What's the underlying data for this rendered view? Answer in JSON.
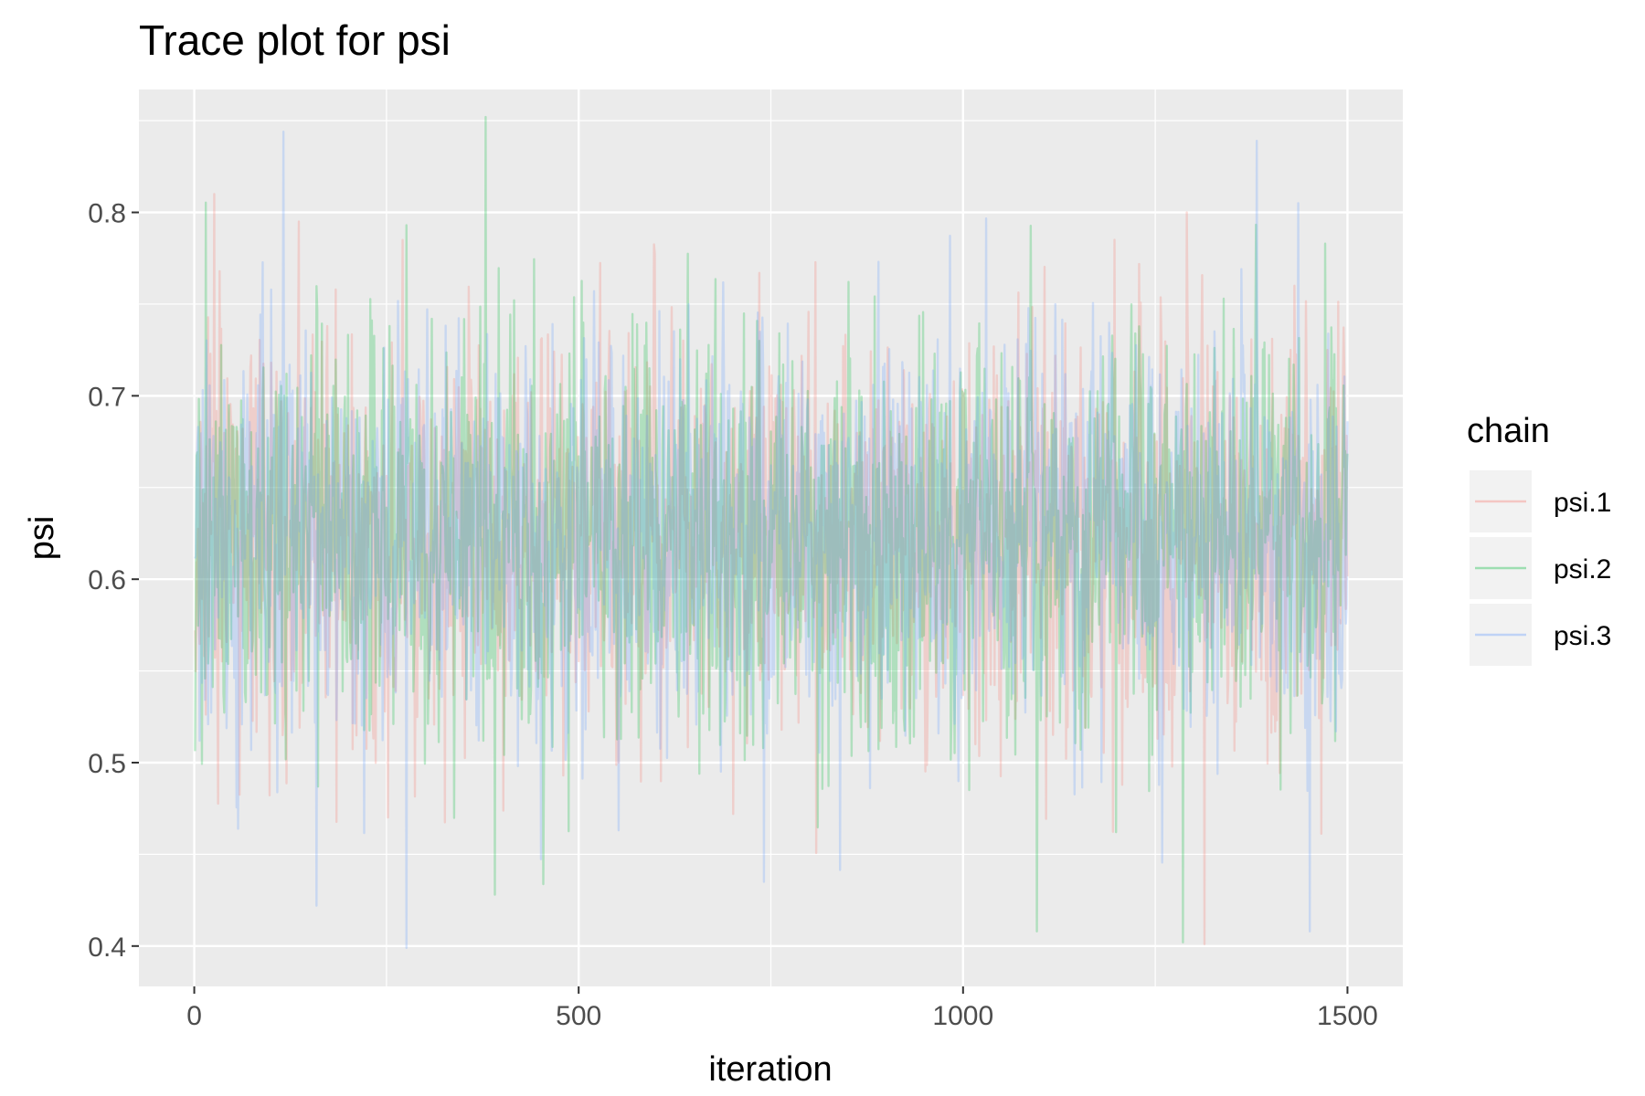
{
  "chart_data": {
    "type": "line",
    "title": "Trace plot for psi",
    "xlabel": "iteration",
    "ylabel": "psi",
    "xlim": [
      -72,
      1572
    ],
    "ylim": [
      0.378,
      0.867
    ],
    "x_ticks": [
      0,
      500,
      1000,
      1500
    ],
    "x_tick_labels": [
      "0",
      "500",
      "1000",
      "1500"
    ],
    "y_ticks": [
      0.4,
      0.5,
      0.6,
      0.7,
      0.8
    ],
    "y_tick_labels": [
      "0.4",
      "0.5",
      "0.6",
      "0.7",
      "0.8"
    ],
    "grid": true,
    "legend_position": "right",
    "legend_title": "chain",
    "n_iterations": 1500,
    "series": [
      {
        "name": "psi.1",
        "color": "#F8766D",
        "mean": 0.625,
        "sd": 0.055,
        "min": 0.401,
        "max": 0.81,
        "extremes": [
          {
            "x": 25,
            "y": 0.81
          },
          {
            "x": 135,
            "y": 0.795
          },
          {
            "x": 1313,
            "y": 0.401
          },
          {
            "x": 700,
            "y": 0.472
          },
          {
            "x": 1290,
            "y": 0.8
          },
          {
            "x": 1430,
            "y": 0.76
          }
        ]
      },
      {
        "name": "psi.2",
        "color": "#00BA38",
        "mean": 0.625,
        "sd": 0.055,
        "min": 0.402,
        "max": 0.852,
        "extremes": [
          {
            "x": 378,
            "y": 0.852
          },
          {
            "x": 275,
            "y": 0.793
          },
          {
            "x": 1285,
            "y": 0.402
          },
          {
            "x": 1095,
            "y": 0.408
          },
          {
            "x": 390,
            "y": 0.428
          },
          {
            "x": 1470,
            "y": 0.783
          }
        ]
      },
      {
        "name": "psi.3",
        "color": "#619CFF",
        "mean": 0.625,
        "sd": 0.055,
        "min": 0.399,
        "max": 0.844,
        "extremes": [
          {
            "x": 115,
            "y": 0.844
          },
          {
            "x": 1435,
            "y": 0.805
          },
          {
            "x": 275,
            "y": 0.399
          },
          {
            "x": 158,
            "y": 0.422
          },
          {
            "x": 1450,
            "y": 0.408
          },
          {
            "x": 740,
            "y": 0.435
          }
        ]
      }
    ]
  }
}
